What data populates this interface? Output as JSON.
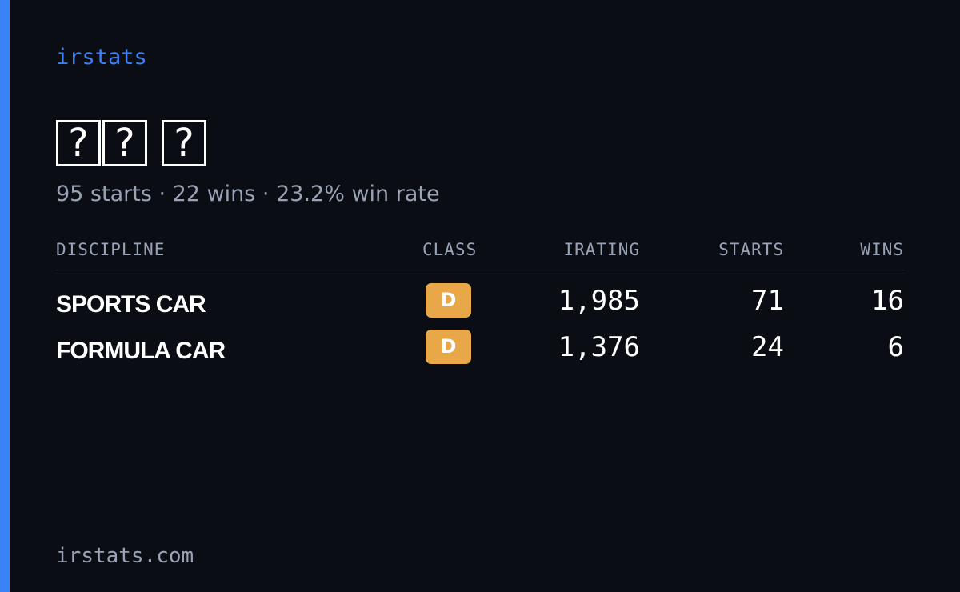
{
  "brand": "irstats",
  "profile": {
    "name": "?? ?",
    "summary": "95 starts · 22 wins · 23.2% win rate"
  },
  "table": {
    "columns": [
      "DISCIPLINE",
      "CLASS",
      "IRATING",
      "STARTS",
      "WINS"
    ],
    "rows": [
      [
        "SPORTS CAR",
        "D",
        "1,985",
        "71",
        "16"
      ],
      [
        "FORMULA CAR",
        "D",
        "1,376",
        "24",
        "6"
      ]
    ]
  },
  "footer": "irstats.com"
}
